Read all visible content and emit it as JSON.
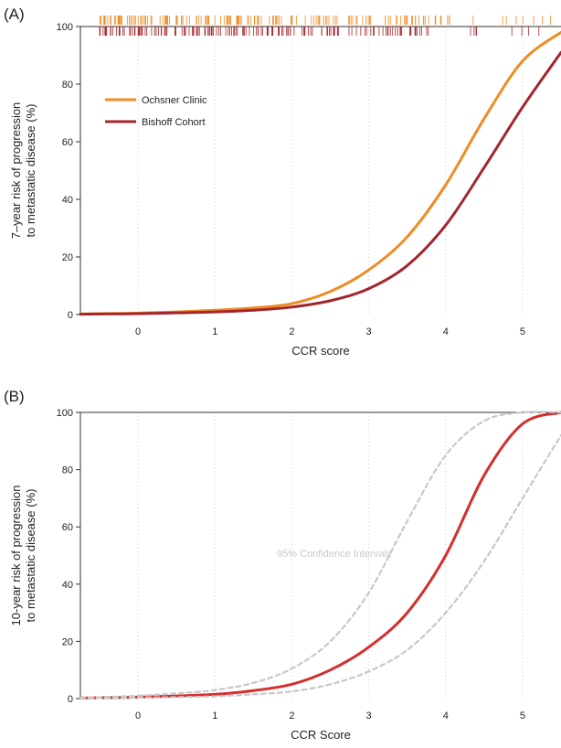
{
  "chart_data": [
    {
      "type": "line",
      "panel_label": "(A)",
      "xlabel": "CCR score",
      "ylabel_line1": "7–year risk of progression",
      "ylabel_line2": "to metastatic disease (%)",
      "xlim": [
        -0.75,
        5.5
      ],
      "ylim": [
        0,
        100
      ],
      "xticks": [
        0,
        1,
        2,
        3,
        4,
        5
      ],
      "yticks": [
        0,
        20,
        40,
        60,
        80,
        100
      ],
      "grid": true,
      "legend_position": "top-left",
      "x": [
        -0.75,
        -0.5,
        0,
        0.5,
        1,
        1.5,
        2,
        2.5,
        3,
        3.5,
        4,
        4.5,
        5,
        5.5
      ],
      "series": [
        {
          "name": "Ochsner Clinic",
          "color": "#ef8c23",
          "values": [
            0.2,
            0.3,
            0.5,
            0.9,
            1.5,
            2.3,
            3.8,
            8.0,
            15.5,
            27.0,
            45.0,
            68.0,
            88.0,
            98.0
          ]
        },
        {
          "name": "Bishoff Cohort",
          "color": "#a3262d",
          "values": [
            0.1,
            0.2,
            0.3,
            0.6,
            0.9,
            1.5,
            2.6,
            4.8,
            9.0,
            17.0,
            31.0,
            51.0,
            72.0,
            91.0
          ]
        }
      ],
      "rug_series": [
        {
          "name": "Ochsner Clinic",
          "color": "#ef8c23"
        },
        {
          "name": "Bishoff Cohort",
          "color": "#a3262d"
        }
      ]
    },
    {
      "type": "line",
      "panel_label": "(B)",
      "xlabel": "CCR Score",
      "ylabel_line1": "10-year risk of progression",
      "ylabel_line2": "to metastatic disease (%)",
      "xlim": [
        -0.75,
        5.5
      ],
      "ylim": [
        0,
        100
      ],
      "xticks": [
        0,
        1,
        2,
        3,
        4,
        5
      ],
      "yticks": [
        0,
        20,
        40,
        60,
        80,
        100
      ],
      "grid": true,
      "annotation": "95% Confidence Intervals",
      "x": [
        -0.75,
        -0.5,
        0,
        0.5,
        1,
        1.5,
        2,
        2.5,
        3,
        3.5,
        4,
        4.5,
        5,
        5.5
      ],
      "series": [
        {
          "style": "solid",
          "color": "#d62d2d",
          "values": [
            0.2,
            0.3,
            0.5,
            0.9,
            1.5,
            2.8,
            5.0,
            10.0,
            18.0,
            30.0,
            50.0,
            78.0,
            96.0,
            100.0
          ]
        },
        {
          "style": "dashed",
          "color": "#c8c8c8",
          "values": [
            0.3,
            0.5,
            1.0,
            1.8,
            3.0,
            5.5,
            10.5,
            20.0,
            37.0,
            62.0,
            85.0,
            97.0,
            100.0,
            100.0
          ]
        },
        {
          "style": "dashed",
          "color": "#c8c8c8",
          "values": [
            0.1,
            0.2,
            0.3,
            0.5,
            0.8,
            1.5,
            2.5,
            5.0,
            9.5,
            17.0,
            30.0,
            48.0,
            70.0,
            92.0
          ]
        }
      ]
    }
  ]
}
